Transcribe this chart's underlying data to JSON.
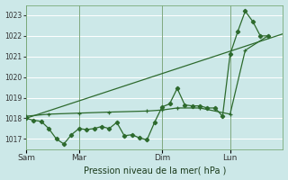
{
  "bg_color": "#cce8e8",
  "grid_color": "#b8d8d8",
  "line_color": "#2d6a2d",
  "xlabel": "Pression niveau de la mer( hPa )",
  "ylim": [
    1016.5,
    1023.5
  ],
  "yticks": [
    1017,
    1018,
    1019,
    1020,
    1021,
    1022,
    1023
  ],
  "day_labels": [
    "Sam",
    "Mar",
    "Dim",
    "Lun"
  ],
  "day_positions": [
    0,
    42,
    108,
    162
  ],
  "xlim": [
    0,
    204
  ],
  "series1": {
    "x": [
      0,
      6,
      12,
      18,
      24,
      30,
      36,
      42,
      48,
      54,
      60,
      66,
      72,
      78,
      84,
      90,
      96,
      102,
      108,
      114,
      120,
      126,
      132,
      138,
      144,
      150,
      156,
      162,
      168,
      174,
      180,
      186,
      192
    ],
    "y": [
      1018.0,
      1017.9,
      1017.85,
      1017.5,
      1017.0,
      1016.75,
      1017.2,
      1017.5,
      1017.45,
      1017.5,
      1017.6,
      1017.5,
      1017.8,
      1017.15,
      1017.2,
      1017.05,
      1016.95,
      1017.8,
      1018.55,
      1018.7,
      1019.45,
      1018.65,
      1018.6,
      1018.6,
      1018.5,
      1018.5,
      1018.1,
      1021.1,
      1022.2,
      1023.2,
      1022.7,
      1022.0,
      1022.0
    ]
  },
  "series2": {
    "x": [
      0,
      18,
      42,
      66,
      96,
      108,
      120,
      138,
      162,
      174,
      192
    ],
    "y": [
      1018.1,
      1018.2,
      1018.25,
      1018.3,
      1018.35,
      1018.4,
      1018.5,
      1018.5,
      1018.2,
      1021.3,
      1022.0
    ]
  },
  "series3": {
    "x": [
      0,
      204
    ],
    "y": [
      1018.0,
      1022.1
    ]
  },
  "vline_color": "#5a8a5a",
  "vline_positions": [
    0,
    42,
    108,
    162
  ]
}
